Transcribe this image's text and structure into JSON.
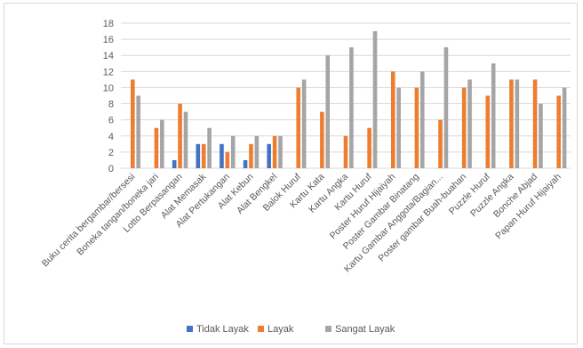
{
  "chart_data": {
    "type": "bar",
    "title": "",
    "xlabel": "",
    "ylabel": "",
    "ylim": [
      0,
      18
    ],
    "yticks": [
      0,
      2,
      4,
      6,
      8,
      10,
      12,
      14,
      16,
      18
    ],
    "grid": true,
    "legend_position": "bottom",
    "categories": [
      "Buku cerita bergambar/bersesi",
      "Boneka tangan/boneka jari",
      "Lotto Berpasangan",
      "Alat Memasak",
      "Alat Pertukangan",
      "Alat Kebun",
      "Alat Bengkel",
      "Balok Huruf",
      "Kartu Kata",
      "Kartu Angka",
      "Kartu Huruf",
      "Poster Huruf Hijaiyah",
      "Poster Gambar Binatang",
      "Kartu Gambar Anggota/Bagian...",
      "Poster gambar Buah-buahan",
      "Puzzle Huruf",
      "Puzzle Angka",
      "Bonche Abjad",
      "Papan Huruf Hijaiyah"
    ],
    "series": [
      {
        "name": "Tidak Layak",
        "color": "#4472c4",
        "values": [
          0,
          0,
          1,
          3,
          3,
          1,
          3,
          0,
          0,
          0,
          0,
          0,
          0,
          0,
          0,
          0,
          0,
          0,
          0
        ]
      },
      {
        "name": "Layak",
        "color": "#ed7d31",
        "values": [
          11,
          5,
          8,
          3,
          2,
          3,
          4,
          10,
          7,
          4,
          5,
          12,
          10,
          6,
          10,
          9,
          11,
          11,
          9
        ]
      },
      {
        "name": "Sangat Layak",
        "color": "#a5a5a5",
        "values": [
          9,
          6,
          7,
          5,
          4,
          4,
          4,
          11,
          14,
          15,
          17,
          10,
          12,
          15,
          11,
          13,
          11,
          8,
          10
        ]
      }
    ]
  }
}
